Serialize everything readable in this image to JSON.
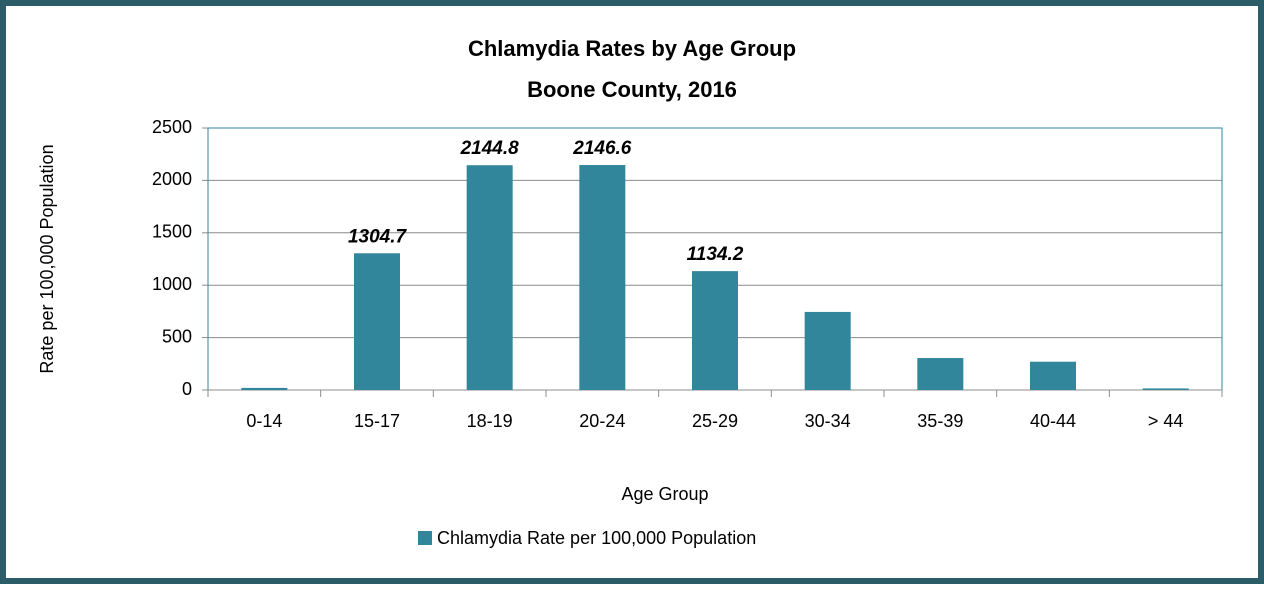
{
  "chart_data": {
    "type": "bar",
    "title": "Chlamydia Rates by Age Group",
    "subtitle": "Boone County, 2016",
    "x_label": "Age Group",
    "y_label": "Rate per 100,000 Population",
    "categories": [
      "0-14",
      "15-17",
      "18-19",
      "20-24",
      "25-29",
      "30-34",
      "35-39",
      "40-44",
      "> 44"
    ],
    "series": [
      {
        "name": "Chlamydia Rate per 100,000 Population",
        "color": "#31869b",
        "values": [
          20,
          1304.7,
          2144.8,
          2146.6,
          1134.2,
          745,
          305,
          270,
          15
        ],
        "value_labels": [
          null,
          "1304.7",
          "2144.8",
          "2146.6",
          "1134.2",
          null,
          null,
          null,
          null
        ]
      }
    ],
    "ylim": [
      0,
      2500
    ],
    "yticks": [
      0,
      500,
      1000,
      1500,
      2000,
      2500
    ],
    "grid": true,
    "legend": "bottom"
  }
}
